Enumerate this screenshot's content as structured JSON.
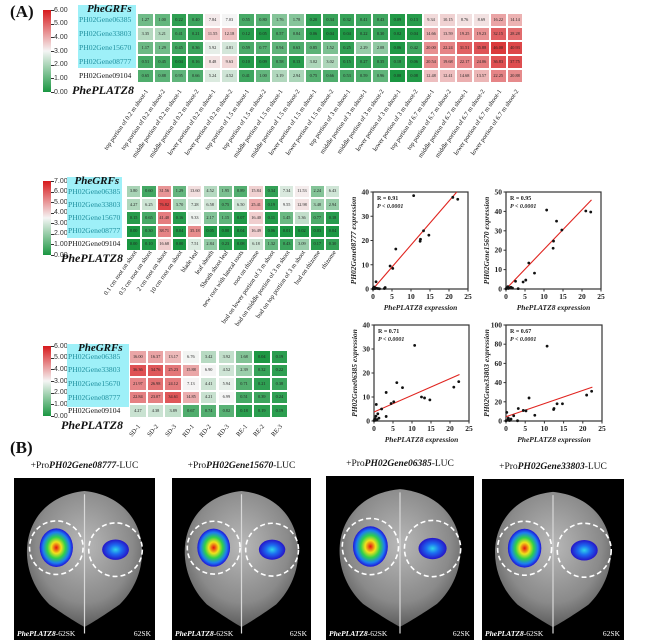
{
  "panel_a_label": "(A)",
  "panel_b_label": "(B)",
  "group_labels": {
    "grfs": "PheGRFs",
    "platz": "PhePLATZ8"
  },
  "chart_data": [
    {
      "type": "heatmap",
      "rows": [
        "PH02Gene06385",
        "PH02Gene33803",
        "PH02Gene15670",
        "PH02Gene08777",
        "PH02Gene09104"
      ],
      "columns": [
        "top portion of 0.2 m shoot-1",
        "top portion of 0.2 m shoot-2",
        "middle portion of 0.2 m shoot-1",
        "middle portion of 0.2 m shoot-2",
        "lower portion of 0.2 m shoot-1",
        "lower portion of 0.2 m shoot-2",
        "top portion of 1.5 m shoot-1",
        "top portion of 1.5 m shoot-2",
        "middle portion of 1.5 m shoot-1",
        "middle portion of 1.5 m shoot-2",
        "lower portion of 1.5 m shoot-1",
        "lower portion of 1.5 m shoot-2",
        "top portion of 3 m shoot-1",
        "middle portion of 3 m shoot-1",
        "middle portion of 3 m shoot-2",
        "lower portion of 3 m shoot-1",
        "lower portion of 3 m shoot-2",
        "top portion of 6.7 m shoot-1",
        "top portion of 6.7 m shoot-2",
        "middle portion of 6.7 m shoot-1",
        "middle portion of 6.7 m shoot-2",
        "lower portion of 6.7 m shoot-1",
        "lower portion of 6.7 m shoot-2"
      ],
      "values": [
        [
          "1.27",
          "1.00",
          "0.22",
          "0.40",
          "7.84",
          "7.03",
          "0.55",
          "0.80",
          "1.76",
          "1.78",
          "0.20",
          "0.34",
          "0.32",
          "0.41",
          "0.43",
          "0.09",
          "0.13",
          "9.34",
          "10.15",
          "8.76",
          "8.69",
          "16.22",
          "14.14"
        ],
        [
          "3.35",
          "3.21",
          "0.41",
          "0.21",
          "11.55",
          "12.18",
          "0.12",
          "0.05",
          "0.57",
          "0.84",
          "0.06",
          "0.04",
          "0.04",
          "0.22",
          "0.30",
          "0.02",
          "0.04",
          "14.66",
          "13.59",
          "19.25",
          "19.23",
          "32.15",
          "28.28"
        ],
        [
          "1.17",
          "1.29",
          "0.45",
          "0.36",
          "5.92",
          "4.81",
          "0.59",
          "0.77",
          "0.94",
          "0.63",
          "0.85",
          "1.52",
          "0.25",
          "2.29",
          "2.08",
          "0.06",
          "0.42",
          "20.00",
          "22.24",
          "31.51",
          "35.88",
          "46.00",
          "40.93"
        ],
        [
          "0.51",
          "0.45",
          "0.04",
          "0.16",
          "8.48",
          "9.63",
          "0.10",
          "0.09",
          "0.58",
          "0.13",
          "3.02",
          "3.02",
          "0.15",
          "0.27",
          "0.35",
          "0.18",
          "0.06",
          "20.54",
          "19.68",
          "22.17",
          "24.06",
          "36.83",
          "37.75"
        ],
        [
          "0.65",
          "0.88",
          "0.95",
          "0.66",
          "5.24",
          "4.52",
          "0.41",
          "1.00",
          "3.19",
          "2.94",
          "0.75",
          "0.66",
          "0.53",
          "0.59",
          "0.96",
          "0.00",
          "0.08",
          "12.48",
          "12.41",
          "14.68",
          "13.57",
          "22.25",
          "20.88"
        ]
      ],
      "color_scale": {
        "transform": "log2(x+1)",
        "min": 0,
        "max": 6,
        "ticks": [
          "0.00",
          "1.00",
          "2.00",
          "3.00",
          "4.00",
          "5.00",
          "6.00"
        ],
        "low": "#1a9641",
        "mid": "#f5f5f5",
        "high": "#d7191c"
      }
    },
    {
      "type": "heatmap",
      "rows": [
        "PH02Gene06385",
        "PH02Gene33803",
        "PH02Gene15670",
        "PH02Gene08777",
        "PH02Gene09104"
      ],
      "columns": [
        "0.1 cm root on shoot",
        "0.5 cm root on shoot",
        "2 cm root on shoot",
        "10 cm root on shoot",
        "blade leaf",
        "leaf sheath",
        "Sheath shoot leaf",
        "new root with lateral roots",
        "root on rhizome",
        "bud on lower portion of 3 m shoot",
        "bud on middle portion of 3 m shoot",
        "bud on top portion of 3 m shoot",
        "bud on rhizome",
        "rhizome"
      ],
      "values": [
        [
          "3.80",
          "0.60",
          "31.56",
          "1.29",
          "13.60",
          "4.52",
          "1.95",
          "0.89",
          "15.84",
          "0.34",
          "7.34",
          "11.53",
          "2.24",
          "6.43"
        ],
        [
          "4.27",
          "6.25",
          "76.82",
          "3.70",
          "7.28",
          "6.58",
          "0.75",
          "6.50",
          "25.41",
          "0.19",
          "9.55",
          "12.98",
          "3.48",
          "2.94"
        ],
        [
          "0.15",
          "0.65",
          "41.40",
          "0.16",
          "9.33",
          "2.17",
          "1.15",
          "0.07",
          "16.40",
          "0.11",
          "1.45",
          "5.36",
          "0.77",
          "0.18"
        ],
        [
          "0.00",
          "0.30",
          "38.71",
          "0.04",
          "35.18",
          "0.05",
          "0.00",
          "0.04",
          "16.49",
          "0.06",
          "0.01",
          "0.02",
          "0.03",
          "0.04"
        ],
        [
          "0.00",
          "0.10",
          "16.68",
          "0.00",
          "7.51",
          "2.84",
          "0.23",
          "0.08",
          "6.18",
          "1.32",
          "0.43",
          "3.09",
          "0.17",
          "0.30"
        ]
      ],
      "color_scale": {
        "transform": "log2(x+1)",
        "min": 0,
        "max": 7,
        "ticks": [
          "0.00",
          "1.00",
          "2.00",
          "3.00",
          "4.00",
          "5.00",
          "6.00",
          "7.00"
        ],
        "low": "#1a9641",
        "mid": "#f5f5f5",
        "high": "#d7191c"
      }
    },
    {
      "type": "heatmap",
      "rows": [
        "PH02Gene06385",
        "PH02Gene33803",
        "PH02Gene15670",
        "PH02Gene08777",
        "PH02Gene09104"
      ],
      "columns": [
        "SD-1",
        "SD-2",
        "SD-3",
        "RD-1",
        "RD-2",
        "RD-3",
        "RE-1",
        "RE-2",
        "RE-3"
      ],
      "values": [
        [
          "16.00",
          "16.37",
          "13.17",
          "6.76",
          "3.42",
          "3.92",
          "1.68",
          "0.04",
          "0.19"
        ],
        [
          "36.36",
          "34.76",
          "25.23",
          "15.88",
          "6.90",
          "4.52",
          "2.39",
          "0.32",
          "0.22"
        ],
        [
          "21.97",
          "26.98",
          "24.12",
          "7.13",
          "4.41",
          "5.94",
          "0.71",
          "0.21",
          "0.38"
        ],
        [
          "22.84",
          "23.07",
          "34.61",
          "14.85",
          "4.21",
          "6.99",
          "0.51",
          "0.39",
          "0.24"
        ],
        [
          "4.27",
          "4.38",
          "3.89",
          "0.67",
          "0.74",
          "0.82",
          "0.18",
          "0.19",
          "0.19"
        ]
      ],
      "color_scale": {
        "transform": "log2(x+1)",
        "min": 0,
        "max": 6,
        "ticks": [
          "0.00",
          "1.00",
          "2.00",
          "3.00",
          "4.00",
          "5.00",
          "6.00"
        ],
        "low": "#1a9641",
        "mid": "#f5f5f5",
        "high": "#d7191c"
      }
    },
    {
      "type": "scatter",
      "xlabel": "PhePLATZ8 expression",
      "ylabel": "PH02Gene08777 expression",
      "xlim": [
        0,
        25
      ],
      "ylim": [
        0,
        40
      ],
      "xticks": [
        "0",
        "5",
        "10",
        "15",
        "20",
        "25"
      ],
      "yticks": [
        "0",
        "10",
        "20",
        "30",
        "40"
      ],
      "annotation": [
        "R = 0.91",
        "P < 0.0001"
      ],
      "fit_line": "linear",
      "fit_color": "#e0241f",
      "points": [
        [
          22.3,
          37
        ],
        [
          21,
          37.8
        ],
        [
          10.7,
          38.5
        ],
        [
          14.7,
          22.2
        ],
        [
          13.3,
          24
        ],
        [
          12.5,
          20.5
        ],
        [
          12.4,
          19.7
        ],
        [
          6,
          16.5
        ],
        [
          4.5,
          9.5
        ],
        [
          5.2,
          8.5
        ],
        [
          0.8,
          3
        ],
        [
          3.2,
          0.6
        ],
        [
          3,
          0.2
        ],
        [
          0.5,
          0.5
        ],
        [
          0.2,
          0.1
        ],
        [
          0.9,
          0.3
        ],
        [
          1.3,
          0.2
        ],
        [
          0,
          0
        ],
        [
          0.3,
          0.8
        ],
        [
          1.7,
          0.1
        ],
        [
          0.6,
          0.2
        ],
        [
          0.1,
          0.4
        ]
      ]
    },
    {
      "type": "scatter",
      "xlabel": "PhePLATZ8 expression",
      "ylabel": "PH02Gene15670 expression",
      "xlim": [
        0,
        25
      ],
      "ylim": [
        0,
        50
      ],
      "xticks": [
        "0",
        "5",
        "10",
        "15",
        "20",
        "25"
      ],
      "yticks": [
        "0",
        "10",
        "20",
        "30",
        "40",
        "50"
      ],
      "annotation": [
        "R = 0.95",
        "P < 0.0001"
      ],
      "fit_line": "linear",
      "fit_color": "#e0241f",
      "points": [
        [
          10.7,
          40.7
        ],
        [
          21,
          40.2
        ],
        [
          22.3,
          39.7
        ],
        [
          13.3,
          35
        ],
        [
          14.7,
          30.4
        ],
        [
          12.5,
          24.7
        ],
        [
          12.4,
          21
        ],
        [
          6,
          13.4
        ],
        [
          7.5,
          8.2
        ],
        [
          5.2,
          4.6
        ],
        [
          4.5,
          3.6
        ],
        [
          2.5,
          4
        ],
        [
          3.2,
          0.2
        ],
        [
          0.2,
          0.4
        ],
        [
          0.5,
          1.2
        ],
        [
          0.9,
          0.6
        ],
        [
          1.3,
          0.9
        ],
        [
          0,
          0.1
        ],
        [
          0.6,
          0.3
        ],
        [
          1.7,
          0.5
        ]
      ]
    },
    {
      "type": "scatter",
      "xlabel": "PhePLATZ8 expression",
      "ylabel": "PH02Gene06385 expression",
      "xlim": [
        0,
        25
      ],
      "ylim": [
        0,
        40
      ],
      "xticks": [
        "0",
        "5",
        "10",
        "15",
        "20",
        "25"
      ],
      "yticks": [
        "0",
        "10",
        "20",
        "30",
        "40"
      ],
      "annotation": [
        "R = 0.71",
        "P < 0.0001"
      ],
      "fit_line": "linear",
      "fit_color": "#e0241f",
      "points": [
        [
          10.7,
          31.5
        ],
        [
          6,
          16
        ],
        [
          7.5,
          13.9
        ],
        [
          3.2,
          11.9
        ],
        [
          22.3,
          16.4
        ],
        [
          21,
          14.1
        ],
        [
          12.5,
          10
        ],
        [
          13.3,
          9.6
        ],
        [
          14.7,
          8.8
        ],
        [
          5.2,
          8
        ],
        [
          4.5,
          7.3
        ],
        [
          0.6,
          6.9
        ],
        [
          2,
          5
        ],
        [
          3.2,
          1.9
        ],
        [
          1,
          3
        ],
        [
          0.2,
          1
        ],
        [
          0.4,
          0.3
        ],
        [
          0.8,
          0.6
        ],
        [
          0,
          0.2
        ],
        [
          1.3,
          1.2
        ],
        [
          0.5,
          2
        ]
      ]
    },
    {
      "type": "scatter",
      "xlabel": "PhePLATZ8 expression",
      "ylabel": "PH02Gene33803 expression",
      "xlim": [
        0,
        25
      ],
      "ylim": [
        0,
        100
      ],
      "xticks": [
        "0",
        "5",
        "10",
        "15",
        "20",
        "25"
      ],
      "yticks": [
        "0",
        "20",
        "40",
        "60",
        "80",
        "100"
      ],
      "annotation": [
        "R = 0.67",
        "P < 0.0001"
      ],
      "fit_line": "linear",
      "fit_color": "#e0241f",
      "points": [
        [
          10.7,
          78
        ],
        [
          6,
          24
        ],
        [
          21,
          27
        ],
        [
          22.3,
          31
        ],
        [
          13.3,
          18
        ],
        [
          14.7,
          18
        ],
        [
          12.5,
          13
        ],
        [
          12.4,
          12
        ],
        [
          3.2,
          13
        ],
        [
          4.5,
          11
        ],
        [
          5.2,
          10.6
        ],
        [
          7.5,
          6
        ],
        [
          2,
          5.5
        ],
        [
          0.2,
          9
        ],
        [
          3,
          0.3
        ],
        [
          0.5,
          1
        ],
        [
          0.9,
          0.5
        ],
        [
          0,
          0.2
        ],
        [
          1.3,
          2
        ],
        [
          0.6,
          3
        ]
      ]
    }
  ],
  "luc_assay": {
    "panels": [
      {
        "prefix": "+Pro",
        "gene": "PH02Gene08777",
        "suffix": "-LUC",
        "left_italic": "PhePLATZ8",
        "left_suffix": "-62SK",
        "right": "62SK",
        "left_signal": "high",
        "right_signal": "low"
      },
      {
        "prefix": "+Pro",
        "gene": "PH02Gene15670",
        "suffix": "-LUC",
        "left_italic": "PhePLATZ8",
        "left_suffix": "-62SK",
        "right": "62SK",
        "left_signal": "high",
        "right_signal": "low"
      },
      {
        "prefix": "+Pro",
        "gene": "PH02Gene06385",
        "suffix": "-LUC",
        "left_italic": "PhePLATZ8",
        "left_suffix": "-62SK",
        "right": "62SK",
        "left_signal": "high",
        "right_signal": "low"
      },
      {
        "prefix": "+Pro",
        "gene": "PH02Gene33803",
        "suffix": "-LUC",
        "left_italic": "PhePLATZ8",
        "left_suffix": "-62SK",
        "right": "62SK",
        "left_signal": "high",
        "right_signal": "low"
      }
    ]
  }
}
